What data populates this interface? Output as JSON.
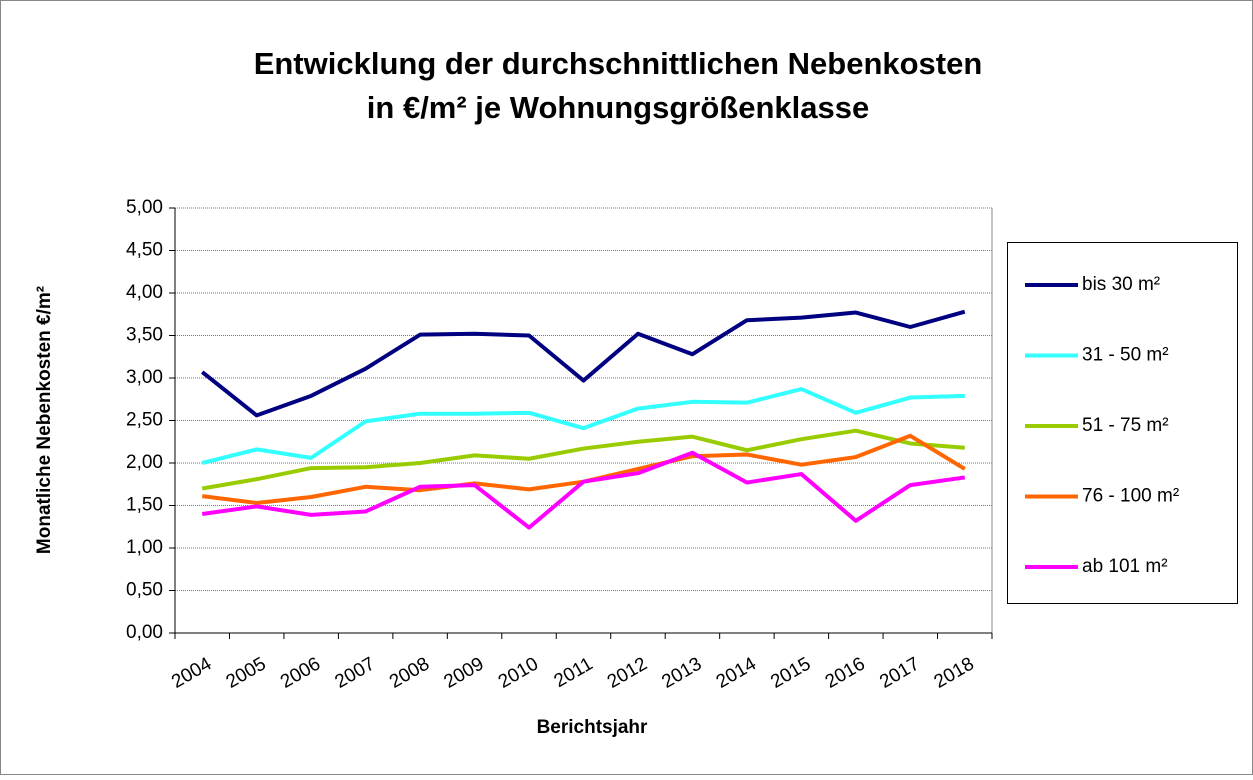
{
  "chart_data": {
    "type": "line",
    "title": [
      "Entwicklung der durchschnittlichen Nebenkosten",
      "in €/m² je Wohnungsgrößenklasse"
    ],
    "x_label": "Berichtsjahr",
    "y_label": "Monatliche Nebenkosten €/m²",
    "categories": [
      "2004",
      "2005",
      "2006",
      "2007",
      "2008",
      "2009",
      "2010",
      "2011",
      "2012",
      "2013",
      "2014",
      "2015",
      "2016",
      "2017",
      "2018"
    ],
    "series": [
      {
        "name": "bis 30 m²",
        "color": "#000080",
        "values": [
          3.07,
          2.56,
          2.79,
          3.11,
          3.51,
          3.52,
          3.5,
          2.97,
          3.52,
          3.28,
          3.68,
          3.71,
          3.77,
          3.6,
          3.78
        ]
      },
      {
        "name": "31 - 50 m²",
        "color": "#33ffff",
        "values": [
          2.0,
          2.16,
          2.06,
          2.49,
          2.58,
          2.58,
          2.59,
          2.41,
          2.64,
          2.72,
          2.71,
          2.87,
          2.59,
          2.77,
          2.79
        ]
      },
      {
        "name": "51 - 75 m²",
        "color": "#99cc00",
        "values": [
          1.7,
          1.81,
          1.94,
          1.95,
          2.0,
          2.09,
          2.05,
          2.17,
          2.25,
          2.31,
          2.15,
          2.28,
          2.38,
          2.23,
          2.18
        ]
      },
      {
        "name": "76 - 100 m²",
        "color": "#ff6600",
        "values": [
          1.61,
          1.53,
          1.6,
          1.72,
          1.68,
          1.76,
          1.69,
          1.78,
          1.93,
          2.08,
          2.1,
          1.98,
          2.07,
          2.32,
          1.93
        ]
      },
      {
        "name": "ab 101 m²",
        "color": "#ff00ff",
        "values": [
          1.4,
          1.49,
          1.39,
          1.43,
          1.72,
          1.74,
          1.24,
          1.78,
          1.88,
          2.12,
          1.77,
          1.87,
          1.32,
          1.74,
          1.83
        ]
      }
    ],
    "ylim": [
      0,
      5
    ],
    "yticks": [
      {
        "value": 0,
        "label": "0,00"
      },
      {
        "value": 0.5,
        "label": "0,50"
      },
      {
        "value": 1,
        "label": "1,00"
      },
      {
        "value": 1.5,
        "label": "1,50"
      },
      {
        "value": 2,
        "label": "2,00"
      },
      {
        "value": 2.5,
        "label": "2,50"
      },
      {
        "value": 3,
        "label": "3,00"
      },
      {
        "value": 3.5,
        "label": "3,50"
      },
      {
        "value": 4,
        "label": "4,00"
      },
      {
        "value": 4.5,
        "label": "4,50"
      },
      {
        "value": 5,
        "label": "5,00"
      }
    ],
    "grid": true,
    "legend": "right"
  }
}
